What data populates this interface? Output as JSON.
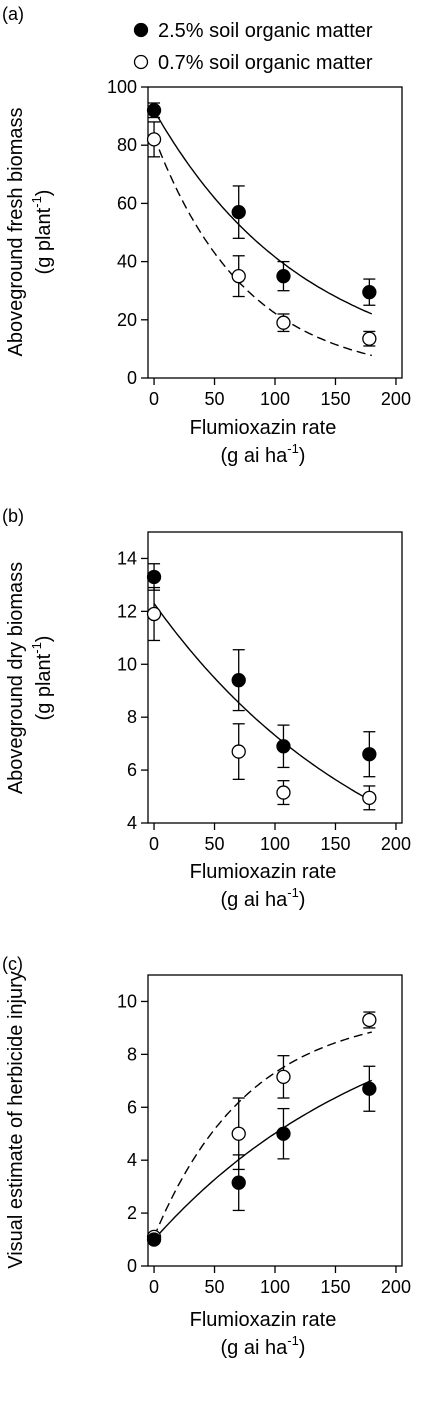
{
  "chart_data": [
    {
      "type": "scatter",
      "panel": "(a)",
      "xlabel_line1": "Flumioxazin rate",
      "xlabel_line2": "(g ai ha",
      "xlabel_sup": "-1",
      "xlabel_close": ")",
      "ylabel_line1": "Aboveground fresh biomass",
      "ylabel_line2": "(g plant",
      "ylabel_sup": "-1",
      "ylabel_close": ")",
      "xlim": [
        -5,
        205
      ],
      "ylim": [
        0,
        100
      ],
      "xticks": [
        0,
        50,
        100,
        150,
        200
      ],
      "yticks": [
        0,
        20,
        40,
        60,
        80,
        100
      ],
      "legend": [
        {
          "label": "2.5% soil organic matter",
          "marker": "filled"
        },
        {
          "label": "0.7% soil organic matter",
          "marker": "open"
        }
      ],
      "series": [
        {
          "name": "2.5% soil organic matter",
          "marker": "filled",
          "line": "solid",
          "x": [
            0,
            70,
            107,
            178
          ],
          "y": [
            92,
            57,
            35,
            29.5
          ],
          "err": [
            2.5,
            9,
            5,
            4.5
          ]
        },
        {
          "name": "0.7% soil organic matter",
          "marker": "open",
          "line": "dashed",
          "x": [
            0,
            70,
            107,
            178
          ],
          "y": [
            82,
            35,
            19,
            13.5
          ],
          "err": [
            6,
            7,
            3,
            2.5
          ]
        }
      ],
      "fits": [
        {
          "line": "solid",
          "a": 92,
          "b": 0.00794
        },
        {
          "line": "dashed",
          "a": 83,
          "b": 0.01316
        }
      ]
    },
    {
      "type": "scatter",
      "panel": "(b)",
      "xlabel_line1": "Flumioxazin rate",
      "xlabel_line2": "(g ai ha",
      "xlabel_sup": "-1",
      "xlabel_close": ")",
      "ylabel_line1": "Aboveground dry biomass",
      "ylabel_line2": "(g plant",
      "ylabel_sup": "-1",
      "ylabel_close": ")",
      "xlim": [
        -5,
        205
      ],
      "ylim": [
        4,
        15
      ],
      "xticks": [
        0,
        50,
        100,
        150,
        200
      ],
      "yticks": [
        4,
        6,
        8,
        10,
        12,
        14
      ],
      "series": [
        {
          "name": "2.5% soil organic matter",
          "marker": "filled",
          "x": [
            0,
            70,
            107,
            178
          ],
          "y": [
            13.3,
            9.4,
            6.9,
            6.6
          ],
          "err": [
            0.5,
            1.15,
            0.8,
            0.85
          ]
        },
        {
          "name": "0.7% soil organic matter",
          "marker": "open",
          "x": [
            0,
            70,
            107,
            178
          ],
          "y": [
            11.9,
            6.7,
            5.15,
            4.95
          ],
          "err": [
            1.0,
            1.05,
            0.45,
            0.45
          ]
        }
      ],
      "fits": [
        {
          "line": "solid",
          "a": 12.3,
          "b": 0.0052
        }
      ]
    },
    {
      "type": "scatter",
      "panel": "(c)",
      "xlabel_line1": "Flumioxazin rate",
      "xlabel_line2": "(g ai ha",
      "xlabel_sup": "-1",
      "xlabel_close": ")",
      "ylabel_line1": "Visual estimate of herbicide injury",
      "xlim": [
        -5,
        205
      ],
      "ylim": [
        0,
        11
      ],
      "xticks": [
        0,
        50,
        100,
        150,
        200
      ],
      "yticks": [
        0,
        2,
        4,
        6,
        8,
        10
      ],
      "series": [
        {
          "name": "2.5% soil organic matter",
          "marker": "filled",
          "line": "solid",
          "x": [
            0,
            70,
            107,
            178
          ],
          "y": [
            1.0,
            3.15,
            5.0,
            6.7
          ],
          "err": [
            0,
            1.05,
            0.95,
            0.85
          ]
        },
        {
          "name": "0.7% soil organic matter",
          "marker": "open",
          "line": "dashed",
          "x": [
            0,
            70,
            107,
            178
          ],
          "y": [
            1.1,
            5.0,
            7.15,
            9.3
          ],
          "err": [
            0,
            1.35,
            0.8,
            0.3
          ]
        }
      ],
      "fits": [
        {
          "line": "solid",
          "type": "growth",
          "c": 1.0,
          "A": 9.9,
          "b": 0.0052
        },
        {
          "line": "dashed",
          "type": "growth",
          "c": 1.1,
          "A": 8.6,
          "b": 0.0128
        }
      ]
    }
  ]
}
